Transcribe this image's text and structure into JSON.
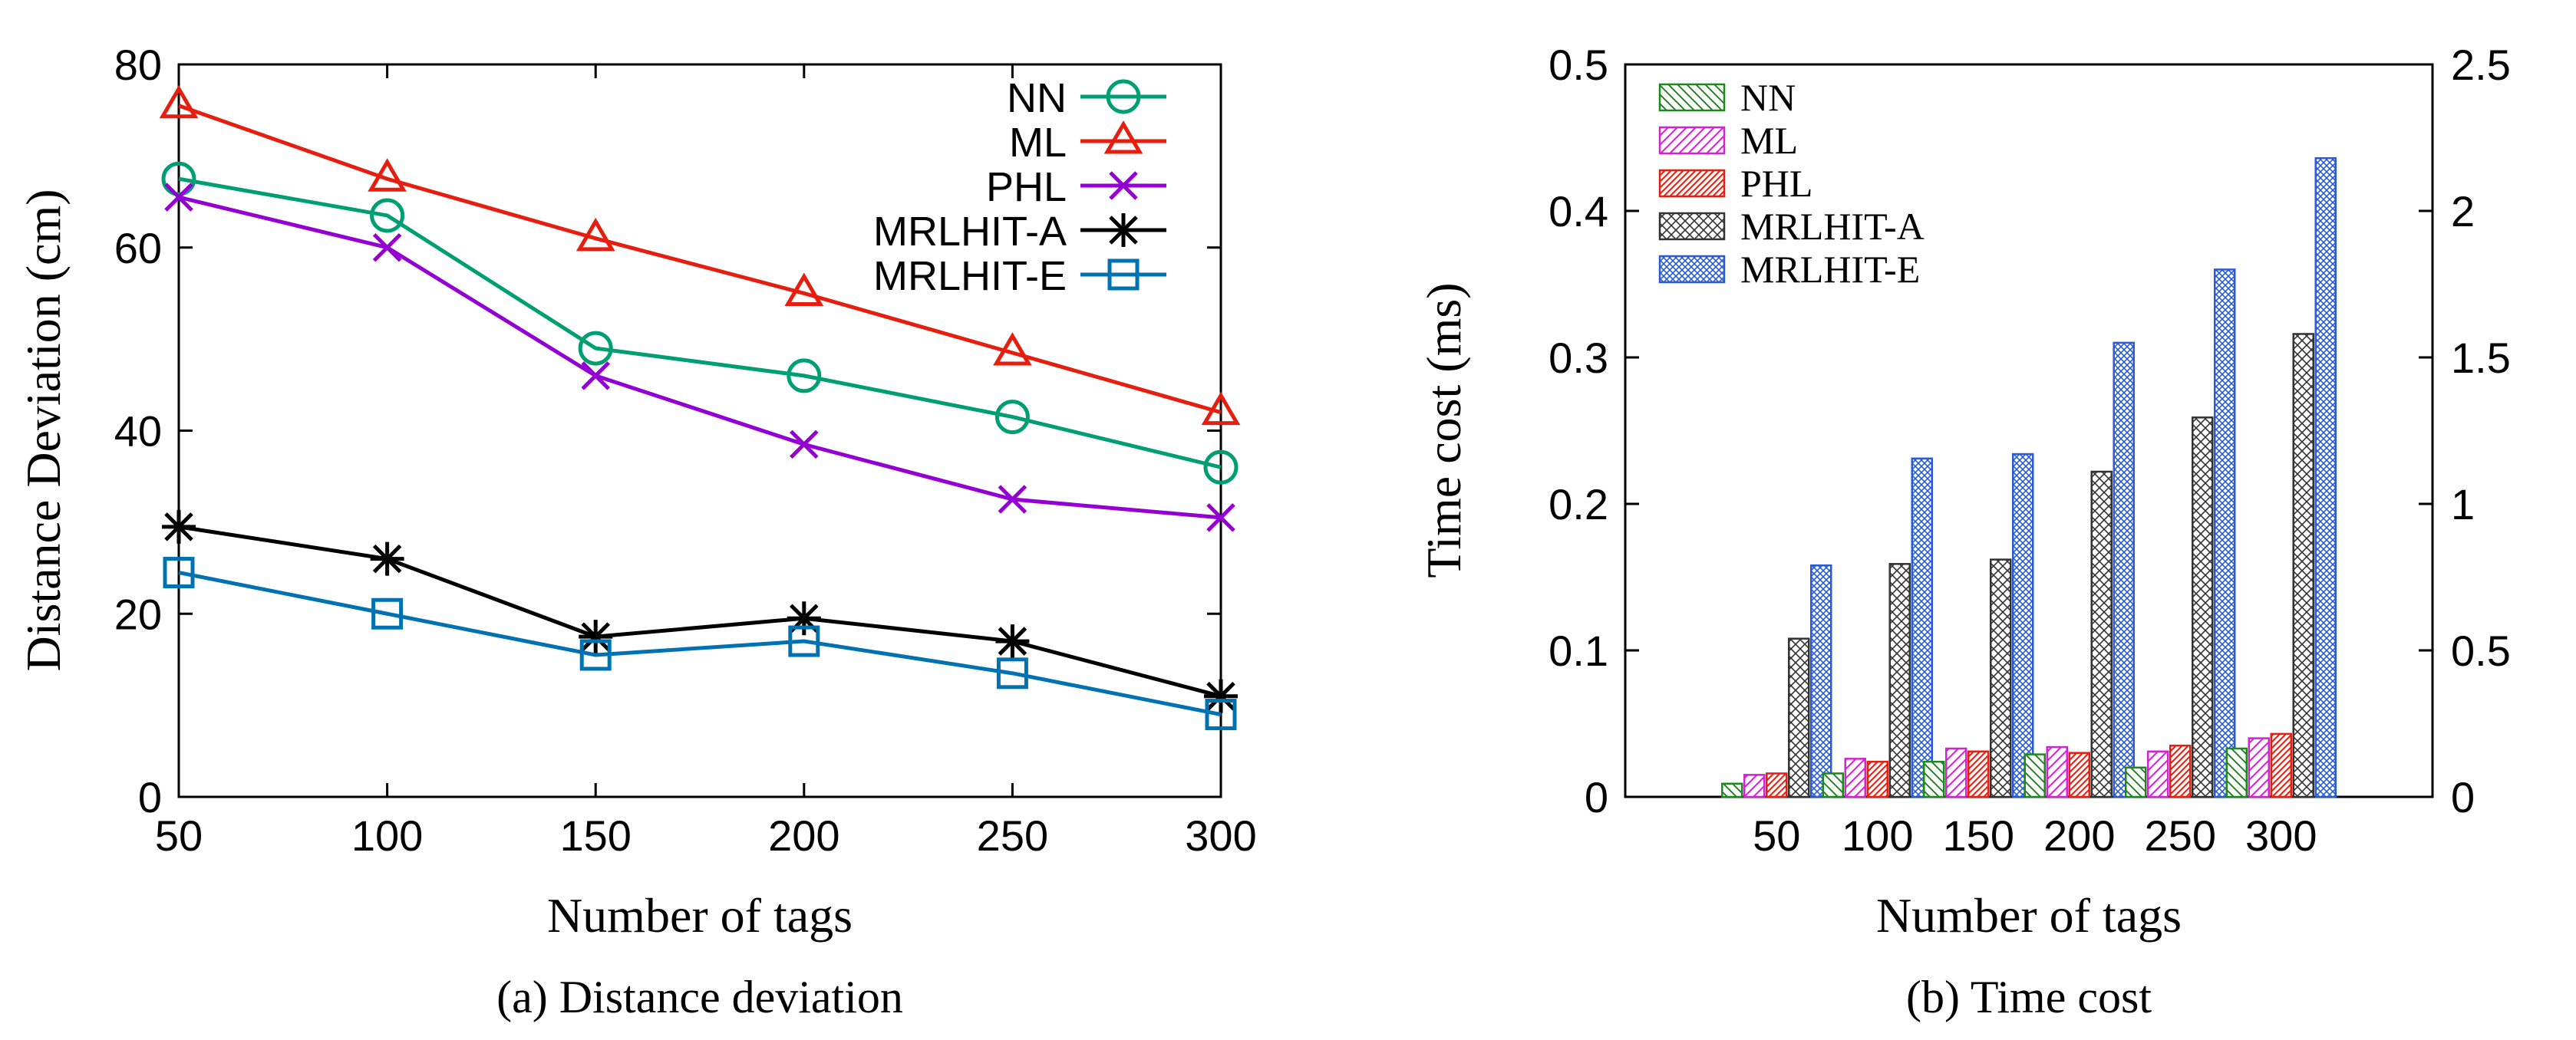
{
  "chart_data": [
    {
      "type": "line",
      "title": "",
      "caption": "(a) Distance deviation",
      "xlabel": "Number of tags",
      "ylabel": "Distance Deviation (cm)",
      "x": [
        50,
        100,
        150,
        200,
        250,
        300
      ],
      "xticks": [
        "50",
        "100",
        "150",
        "200",
        "250",
        "300"
      ],
      "yticks": [
        "0",
        "20",
        "40",
        "60",
        "80"
      ],
      "xlim": [
        50,
        300
      ],
      "ylim": [
        0,
        80
      ],
      "legend_position": "top-right",
      "series": [
        {
          "name": "NN",
          "color": "#009e73",
          "marker": "circle",
          "values": [
            67.5,
            63.5,
            49,
            46,
            41.5,
            36
          ]
        },
        {
          "name": "ML",
          "color": "#e51e10",
          "marker": "triangle",
          "values": [
            75.5,
            67.5,
            61,
            55,
            48.5,
            42
          ]
        },
        {
          "name": "PHL",
          "color": "#9400d3",
          "marker": "x",
          "values": [
            65.5,
            60,
            46,
            38.5,
            32.5,
            30.5
          ]
        },
        {
          "name": "MRLHIT-A",
          "color": "#000000",
          "marker": "star",
          "values": [
            29.5,
            26,
            17.5,
            19.5,
            17,
            11
          ]
        },
        {
          "name": "MRLHIT-E",
          "color": "#0072b2",
          "marker": "square",
          "values": [
            24.5,
            20,
            15.5,
            17,
            13.5,
            9
          ]
        }
      ]
    },
    {
      "type": "bar",
      "title": "",
      "caption": "(b) Time cost",
      "xlabel": "Number of tags",
      "ylabel": "Time cost (ms)",
      "categories": [
        "50",
        "100",
        "150",
        "200",
        "250",
        "300"
      ],
      "yticks": [
        "0",
        "0.1",
        "0.2",
        "0.3",
        "0.4",
        "0.5"
      ],
      "y2ticks": [
        "0",
        "0.5",
        "1",
        "1.5",
        "2",
        "2.5"
      ],
      "ylim": [
        0,
        0.5
      ],
      "y2lim": [
        0,
        2.5
      ],
      "legend_position": "top-left",
      "series": [
        {
          "name": "NN",
          "color": "#1a8a1a",
          "pattern": "back-diagonal",
          "values": [
            0.009,
            0.016,
            0.024,
            0.029,
            0.02,
            0.033
          ]
        },
        {
          "name": "ML",
          "color": "#d024d0",
          "pattern": "diagonal",
          "values": [
            0.015,
            0.026,
            0.033,
            0.034,
            0.031,
            0.04
          ]
        },
        {
          "name": "PHL",
          "color": "#e51e10",
          "pattern": "dense-diagonal",
          "values": [
            0.016,
            0.024,
            0.031,
            0.03,
            0.035,
            0.043
          ]
        },
        {
          "name": "MRLHIT-A",
          "color": "#333333",
          "pattern": "crosshatch",
          "values": [
            0.108,
            0.159,
            0.162,
            0.222,
            0.259,
            0.316
          ]
        },
        {
          "name": "MRLHIT-E",
          "color": "#2a5bd7",
          "pattern": "dense-crosshatch",
          "values": [
            0.158,
            0.231,
            0.234,
            0.31,
            0.36,
            0.436
          ]
        }
      ]
    }
  ]
}
